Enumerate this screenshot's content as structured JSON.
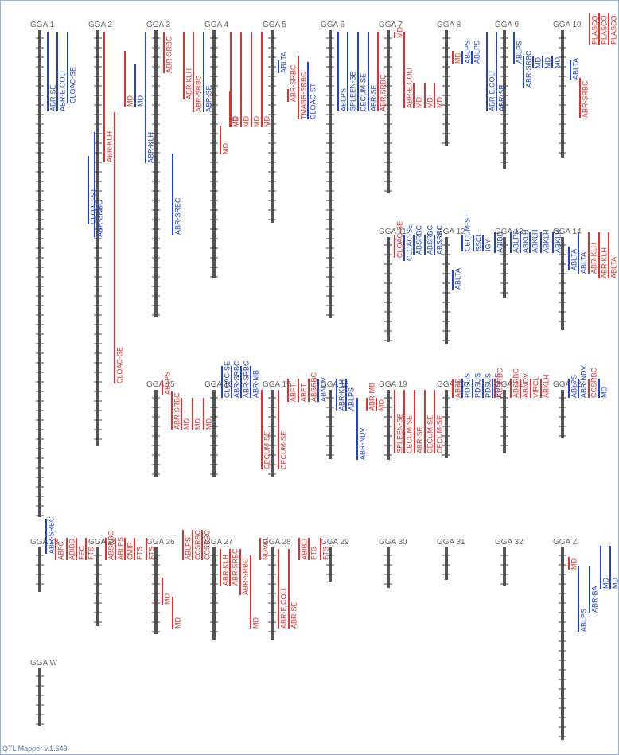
{
  "app": {
    "footer": "QTL Mapper v.1.643"
  },
  "colors": {
    "red": "#e03030",
    "blue": "#2244cc",
    "axis": "#555555",
    "label": "#666666",
    "tick": "#444444"
  },
  "chromosomes": [
    {
      "name": "GGA 1",
      "qtls": [
        {
          "label": "ABR-SE",
          "color": "blue"
        },
        {
          "label": "ABR-E.COLI",
          "color": "blue"
        },
        {
          "label": "CLOAC-SE",
          "color": "blue"
        }
      ]
    },
    {
      "name": "GGA 2",
      "qtls": [
        {
          "label": "CLOAC-ST",
          "color": "blue"
        },
        {
          "label": "ABR-SRBC",
          "color": "blue"
        },
        {
          "label": "ABR-KLH",
          "color": "red"
        },
        {
          "label": "CLOAC-SE",
          "color": "red"
        },
        {
          "label": "MD",
          "color": "red"
        },
        {
          "label": "MD",
          "color": "blue"
        }
      ]
    },
    {
      "name": "GGA 3",
      "qtls": [
        {
          "label": "ABR-KLH",
          "color": "blue"
        },
        {
          "label": "ABR-SRBC",
          "color": "red"
        },
        {
          "label": "ABR-SRBC",
          "color": "blue"
        }
      ]
    },
    {
      "name": "GGA 4",
      "qtls": [
        {
          "label": "ABR-KLH",
          "color": "red"
        },
        {
          "label": "ABR-SRBC",
          "color": "red"
        },
        {
          "label": "ABR-SE",
          "color": "blue"
        },
        {
          "label": "MD",
          "color": "red"
        },
        {
          "label": "MD",
          "color": "red"
        }
      ]
    },
    {
      "name": "GGA 5",
      "qtls": [
        {
          "label": "MD",
          "color": "red"
        },
        {
          "label": "MD",
          "color": "red"
        },
        {
          "label": "MD",
          "color": "red"
        },
        {
          "label": "MD",
          "color": "red"
        },
        {
          "label": "ABLTA",
          "color": "blue"
        },
        {
          "label": "ABR-SRBC",
          "color": "red"
        },
        {
          "label": "TMABR-SRBC",
          "color": "red"
        },
        {
          "label": "CLOAC-ST",
          "color": "blue"
        }
      ]
    },
    {
      "name": "GGA 6",
      "qtls": [
        {
          "label": "ABLPS",
          "color": "blue"
        },
        {
          "label": "SPLEEN-SE",
          "color": "blue"
        },
        {
          "label": "CECUM-SE",
          "color": "blue"
        },
        {
          "label": "ABR-SE",
          "color": "blue"
        },
        {
          "label": "ABR-SRBC",
          "color": "red"
        }
      ]
    },
    {
      "name": "GGA 7",
      "qtls": [
        {
          "label": "MD",
          "color": "red"
        },
        {
          "label": "ABR-E.COLI",
          "color": "red"
        },
        {
          "label": "MD",
          "color": "red"
        },
        {
          "label": "MD",
          "color": "red"
        },
        {
          "label": "MD",
          "color": "red"
        }
      ]
    },
    {
      "name": "GGA 8",
      "qtls": [
        {
          "label": "MD",
          "color": "red"
        },
        {
          "label": "ABLPS",
          "color": "blue"
        },
        {
          "label": "ABLPS",
          "color": "blue"
        }
      ]
    },
    {
      "name": "GGA 9",
      "qtls": [
        {
          "label": "ABR-E.COLI",
          "color": "blue"
        },
        {
          "label": "ABR-SE",
          "color": "blue"
        },
        {
          "label": "ABLPS",
          "color": "blue"
        },
        {
          "label": "ABR-SRBC",
          "color": "blue"
        },
        {
          "label": "MD",
          "color": "blue"
        },
        {
          "label": "MD",
          "color": "blue"
        },
        {
          "label": "MD",
          "color": "blue"
        }
      ]
    },
    {
      "name": "GGA 10",
      "qtls": [
        {
          "label": "ABLTA",
          "color": "blue"
        },
        {
          "label": "ABR-SRBC",
          "color": "red"
        },
        {
          "label": "PLASCO",
          "color": "red"
        },
        {
          "label": "PLASCO",
          "color": "red"
        },
        {
          "label": "PLASCO",
          "color": "red"
        }
      ]
    },
    {
      "name": "GGA 11",
      "qtls": [
        {
          "label": "CLOAC-SE",
          "color": "red"
        },
        {
          "label": "CLOAC-SE",
          "color": "blue"
        },
        {
          "label": "ABSRBC",
          "color": "blue"
        },
        {
          "label": "ABSRBC",
          "color": "blue"
        },
        {
          "label": "ABSRBC",
          "color": "blue"
        }
      ]
    },
    {
      "name": "GGA 12",
      "qtls": [
        {
          "label": "ABLTA",
          "color": "blue"
        },
        {
          "label": "CECUM-ST",
          "color": "blue"
        },
        {
          "label": "SSCL",
          "color": "blue"
        },
        {
          "label": "IGY",
          "color": "blue"
        }
      ]
    },
    {
      "name": "GGA 13",
      "qtls": [
        {
          "label": "ABIBD",
          "color": "blue"
        },
        {
          "label": "ABLPS",
          "color": "blue"
        },
        {
          "label": "ABKLH",
          "color": "blue"
        },
        {
          "label": "ABKLH",
          "color": "blue"
        },
        {
          "label": "ABKLH",
          "color": "blue"
        }
      ]
    },
    {
      "name": "GGA 14",
      "qtls": [
        {
          "label": "ABKLH",
          "color": "blue"
        },
        {
          "label": "ABLTA",
          "color": "blue"
        },
        {
          "label": "ABLTA",
          "color": "blue"
        },
        {
          "label": "ABR-KLH",
          "color": "red"
        },
        {
          "label": "ABR-KLH",
          "color": "red"
        },
        {
          "label": "ABLTA",
          "color": "red"
        }
      ]
    },
    {
      "name": "GGA 15",
      "qtls": [
        {
          "label": "ABLPS",
          "color": "red"
        },
        {
          "label": "ABR-SRBC",
          "color": "red"
        },
        {
          "label": "MD",
          "color": "red"
        },
        {
          "label": "MD",
          "color": "red"
        },
        {
          "label": "MD",
          "color": "red"
        }
      ]
    },
    {
      "name": "GGA 16",
      "qtls": [
        {
          "label": "CLOAC-SE",
          "color": "blue"
        },
        {
          "label": "ABR-SRBC",
          "color": "blue"
        },
        {
          "label": "ABR-SRBC",
          "color": "blue"
        },
        {
          "label": "ABR-MB",
          "color": "blue"
        }
      ]
    },
    {
      "name": "GGA 17",
      "qtls": [
        {
          "label": "CECUM-SE",
          "color": "red"
        },
        {
          "label": "CECUM-SE",
          "color": "red"
        },
        {
          "label": "ABFT",
          "color": "red"
        },
        {
          "label": "ABFT",
          "color": "red"
        },
        {
          "label": "ABSRBC",
          "color": "red"
        },
        {
          "label": "ABNDV",
          "color": "blue"
        }
      ]
    },
    {
      "name": "GGA 18",
      "qtls": [
        {
          "label": "ABR-KLH",
          "color": "blue"
        },
        {
          "label": "ABLPS",
          "color": "blue"
        },
        {
          "label": "ABR-NDV",
          "color": "blue"
        },
        {
          "label": "ABR-MB",
          "color": "red"
        },
        {
          "label": "MD",
          "color": "red"
        }
      ]
    },
    {
      "name": "GGA 19",
      "qtls": [
        {
          "label": "SPLEEN-SE",
          "color": "red"
        },
        {
          "label": "CECUM-SE",
          "color": "red"
        },
        {
          "label": "ABR-SE",
          "color": "red"
        },
        {
          "label": "CECUM-SE",
          "color": "red"
        },
        {
          "label": "CECUM-SE",
          "color": "red"
        }
      ]
    },
    {
      "name": "GGA 20",
      "qtls": [
        {
          "label": "ABBD",
          "color": "red"
        },
        {
          "label": "PDSUS",
          "color": "blue"
        },
        {
          "label": "PDSUS",
          "color": "blue"
        },
        {
          "label": "PDSUS",
          "color": "blue"
        },
        {
          "label": "PDSUS",
          "color": "blue"
        }
      ]
    },
    {
      "name": "GGA 21",
      "qtls": [
        {
          "label": "ACSRBC",
          "color": "red"
        },
        {
          "label": "ABSRBC",
          "color": "red"
        },
        {
          "label": "ABNDV",
          "color": "red"
        },
        {
          "label": "VIRCL",
          "color": "red"
        },
        {
          "label": "ABKLH",
          "color": "red"
        }
      ]
    },
    {
      "name": "GGA 22",
      "qtls": [
        {
          "label": "ABLPS",
          "color": "blue"
        },
        {
          "label": "ABR-NDV",
          "color": "blue"
        },
        {
          "label": "CCSRBC",
          "color": "red"
        },
        {
          "label": "MD",
          "color": "blue"
        }
      ]
    },
    {
      "name": "GGA 23",
      "qtls": [
        {
          "label": "ABR-SRBC",
          "color": "blue"
        },
        {
          "label": "ABFC",
          "color": "red"
        },
        {
          "label": "ABIBD",
          "color": "red"
        },
        {
          "label": "FEC",
          "color": "red"
        },
        {
          "label": "FTS",
          "color": "red"
        }
      ]
    },
    {
      "name": "GGA 24",
      "qtls": [
        {
          "label": "ABSRBC",
          "color": "red"
        },
        {
          "label": "ABLPS",
          "color": "red"
        },
        {
          "label": "CMIR",
          "color": "red"
        },
        {
          "label": "FTS",
          "color": "red"
        }
      ]
    },
    {
      "name": "GGA 25",
      "qtls": []
    },
    {
      "name": "GGA 26",
      "qtls": [
        {
          "label": "FTS",
          "color": "red"
        },
        {
          "label": "MD",
          "color": "red"
        },
        {
          "label": "MD",
          "color": "red"
        },
        {
          "label": "ABLPS",
          "color": "red"
        },
        {
          "label": "CCSRBC",
          "color": "red"
        },
        {
          "label": "CCSRBC",
          "color": "red"
        }
      ]
    },
    {
      "name": "GGA 27",
      "qtls": [
        {
          "label": "ABR-KLH",
          "color": "red"
        },
        {
          "label": "ABR-SRBC",
          "color": "red"
        },
        {
          "label": "ABR-SRBC",
          "color": "red"
        },
        {
          "label": "MD",
          "color": "red"
        },
        {
          "label": "NDVAL",
          "color": "red"
        }
      ]
    },
    {
      "name": "GGA 28",
      "qtls": [
        {
          "label": "ABR-E.COLI",
          "color": "red"
        },
        {
          "label": "ABR-SE",
          "color": "red"
        },
        {
          "label": "ABIBD",
          "color": "red"
        },
        {
          "label": "FTS",
          "color": "red"
        }
      ]
    },
    {
      "name": "GGA 29",
      "qtls": [
        {
          "label": "FTS",
          "color": "red"
        }
      ]
    },
    {
      "name": "GGA 30",
      "qtls": []
    },
    {
      "name": "GGA 31",
      "qtls": []
    },
    {
      "name": "GGA 32",
      "qtls": []
    },
    {
      "name": "GGA Z",
      "qtls": [
        {
          "label": "MD",
          "color": "red"
        },
        {
          "label": "ABLPS",
          "color": "blue"
        },
        {
          "label": "ABR-BA",
          "color": "blue"
        },
        {
          "label": "MD",
          "color": "blue"
        },
        {
          "label": "MD",
          "color": "blue"
        }
      ]
    },
    {
      "name": "GGA W",
      "qtls": []
    }
  ]
}
